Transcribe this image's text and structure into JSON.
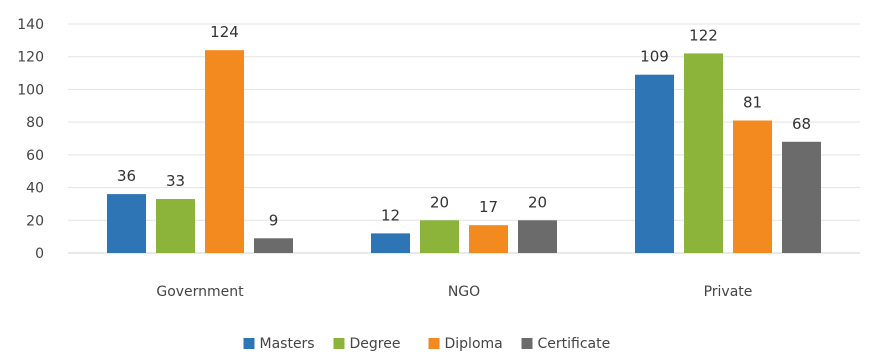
{
  "chart_data": {
    "type": "bar",
    "categories": [
      "Government",
      "NGO",
      "Private"
    ],
    "series": [
      {
        "name": "Masters",
        "values": [
          36,
          12,
          109
        ],
        "color": "#2E75B6"
      },
      {
        "name": "Degree",
        "values": [
          33,
          20,
          122
        ],
        "color": "#8CB33A"
      },
      {
        "name": "Diploma",
        "values": [
          124,
          17,
          81
        ],
        "color": "#F28A1F"
      },
      {
        "name": "Certificate",
        "values": [
          9,
          20,
          68
        ],
        "color": "#6B6B6B"
      }
    ],
    "title": "",
    "xlabel": "",
    "ylabel": "",
    "ylim": [
      0,
      140
    ],
    "yticks": [
      0,
      20,
      40,
      60,
      80,
      100,
      120,
      140
    ],
    "grid": true,
    "legend_position": "bottom",
    "data_labels": true
  }
}
